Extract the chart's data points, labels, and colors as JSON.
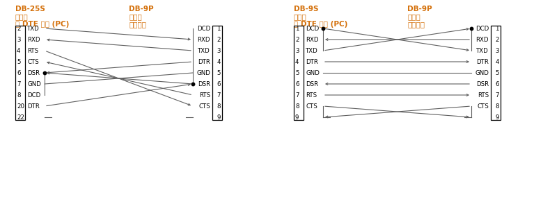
{
  "bg_color": "#ffffff",
  "text_color": "#000000",
  "orange_color": "#d4700a",
  "line_color": "#606060",
  "dot_color": "#000000",
  "diag1": {
    "title_left_l1": "DB-25S",
    "title_left_l2": "连接器",
    "title_left_l3": "到 DTE 设备 (PC)",
    "title_right_l1": "DB-9P",
    "title_right_l2": "连接器",
    "title_right_l3": "到打印机",
    "left_pins": [
      2,
      3,
      4,
      5,
      6,
      7,
      8,
      20,
      22
    ],
    "left_sigs": [
      "TXD",
      "RXD",
      "RTS",
      "CTS",
      "DSR",
      "GND",
      "DCD",
      "DTR",
      ""
    ],
    "right_pins": [
      1,
      2,
      3,
      4,
      5,
      6,
      7,
      8,
      9
    ],
    "right_sigs": [
      "DCD",
      "RXD",
      "TXD",
      "DTR",
      "GND",
      "DSR",
      "RTS",
      "CTS",
      ""
    ]
  },
  "diag2": {
    "title_left_l1": "DB-9S",
    "title_left_l2": "连接器",
    "title_left_l3": "到 DTE 设备 (PC)",
    "title_right_l1": "DB-9P",
    "title_right_l2": "连接器",
    "title_right_l3": "到打印机",
    "left_pins": [
      1,
      2,
      3,
      4,
      5,
      6,
      7,
      8,
      9
    ],
    "left_sigs": [
      "DCD",
      "RXD",
      "TXD",
      "DTR",
      "GND",
      "DSR",
      "RTS",
      "CTS",
      ""
    ],
    "right_pins": [
      1,
      2,
      3,
      4,
      5,
      6,
      7,
      8,
      9
    ],
    "right_sigs": [
      "DCD",
      "RXD",
      "TXD",
      "DTR",
      "GND",
      "DSR",
      "RTS",
      "CTS",
      ""
    ]
  }
}
